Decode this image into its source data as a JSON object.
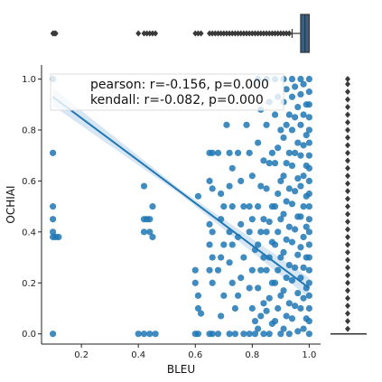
{
  "chart_data": {
    "type": "scatter",
    "title": "",
    "xlabel": "BLEU",
    "ylabel": "OCHIAI",
    "xlim": [
      0.06,
      1.04
    ],
    "ylim": [
      -0.04,
      1.055
    ],
    "xticks": [
      0.2,
      0.4,
      0.6,
      0.8,
      1.0
    ],
    "xtick_labels": [
      "0.2",
      "0.4",
      "0.6",
      "0.8",
      "1.0"
    ],
    "yticks": [
      0.0,
      0.2,
      0.4,
      0.6,
      0.8,
      1.0
    ],
    "ytick_labels": [
      "0.0",
      "0.2",
      "0.4",
      "0.6",
      "0.8",
      "1.0"
    ],
    "grid": false,
    "annotation": {
      "lines": [
        "pearson: r=-0.156, p=0.000",
        "kendall: r=-0.082, p=0.000"
      ],
      "placement": "top-center"
    },
    "colors": {
      "points": "#1f77b4",
      "regression": "#1f77b4",
      "ci_band": "#c6dbef",
      "box_fill": "#3b5f80",
      "box_edge": "#333333"
    },
    "regression": {
      "x": [
        0.1,
        1.0
      ],
      "y": [
        0.93,
        0.18
      ]
    },
    "points": [
      {
        "x": 0.1,
        "y": 1.0
      },
      {
        "x": 0.1,
        "y": 0.71
      },
      {
        "x": 0.1,
        "y": 0.5
      },
      {
        "x": 0.1,
        "y": 0.45
      },
      {
        "x": 0.1,
        "y": 0.4
      },
      {
        "x": 0.1,
        "y": 0.38
      },
      {
        "x": 0.11,
        "y": 0.38
      },
      {
        "x": 0.12,
        "y": 0.38
      },
      {
        "x": 0.1,
        "y": 0.0
      },
      {
        "x": 0.4,
        "y": 0.0
      },
      {
        "x": 0.42,
        "y": 0.0
      },
      {
        "x": 0.44,
        "y": 0.0
      },
      {
        "x": 0.46,
        "y": 0.0
      },
      {
        "x": 0.42,
        "y": 0.58
      },
      {
        "x": 0.42,
        "y": 0.45
      },
      {
        "x": 0.43,
        "y": 0.45
      },
      {
        "x": 0.44,
        "y": 0.45
      },
      {
        "x": 0.42,
        "y": 0.4
      },
      {
        "x": 0.44,
        "y": 0.4
      },
      {
        "x": 0.45,
        "y": 0.5
      },
      {
        "x": 0.45,
        "y": 0.38
      },
      {
        "x": 0.6,
        "y": 0.0
      },
      {
        "x": 0.61,
        "y": 0.0
      },
      {
        "x": 0.6,
        "y": 0.25
      },
      {
        "x": 0.6,
        "y": 0.2
      },
      {
        "x": 0.61,
        "y": 0.15
      },
      {
        "x": 0.61,
        "y": 0.1
      },
      {
        "x": 0.62,
        "y": 0.08
      },
      {
        "x": 0.61,
        "y": 0.54
      },
      {
        "x": 0.65,
        "y": 0.71
      },
      {
        "x": 0.66,
        "y": 0.71
      },
      {
        "x": 0.65,
        "y": 0.6
      },
      {
        "x": 0.66,
        "y": 0.57
      },
      {
        "x": 0.65,
        "y": 0.43
      },
      {
        "x": 0.66,
        "y": 0.4
      },
      {
        "x": 0.65,
        "y": 0.35
      },
      {
        "x": 0.66,
        "y": 0.3
      },
      {
        "x": 0.65,
        "y": 0.25
      },
      {
        "x": 0.66,
        "y": 0.2
      },
      {
        "x": 0.65,
        "y": 0.0
      },
      {
        "x": 0.66,
        "y": 0.0
      },
      {
        "x": 0.68,
        "y": 0.71
      },
      {
        "x": 0.69,
        "y": 0.55
      },
      {
        "x": 0.7,
        "y": 0.5
      },
      {
        "x": 0.69,
        "y": 0.45
      },
      {
        "x": 0.7,
        "y": 0.35
      },
      {
        "x": 0.69,
        "y": 0.3
      },
      {
        "x": 0.68,
        "y": 0.25
      },
      {
        "x": 0.7,
        "y": 0.15
      },
      {
        "x": 0.69,
        "y": 0.07
      },
      {
        "x": 0.68,
        "y": 0.0
      },
      {
        "x": 0.71,
        "y": 0.82
      },
      {
        "x": 0.72,
        "y": 0.71
      },
      {
        "x": 0.73,
        "y": 0.65
      },
      {
        "x": 0.72,
        "y": 0.58
      },
      {
        "x": 0.73,
        "y": 0.5
      },
      {
        "x": 0.72,
        "y": 0.4
      },
      {
        "x": 0.73,
        "y": 0.35
      },
      {
        "x": 0.72,
        "y": 0.28
      },
      {
        "x": 0.73,
        "y": 0.2
      },
      {
        "x": 0.74,
        "y": 0.1
      },
      {
        "x": 0.72,
        "y": 0.0
      },
      {
        "x": 0.74,
        "y": 0.0
      },
      {
        "x": 0.75,
        "y": 0.71
      },
      {
        "x": 0.76,
        "y": 0.6
      },
      {
        "x": 0.77,
        "y": 0.5
      },
      {
        "x": 0.76,
        "y": 0.43
      },
      {
        "x": 0.75,
        "y": 0.38
      },
      {
        "x": 0.77,
        "y": 0.3
      },
      {
        "x": 0.76,
        "y": 0.22
      },
      {
        "x": 0.75,
        "y": 0.15
      },
      {
        "x": 0.77,
        "y": 0.0
      },
      {
        "x": 0.78,
        "y": 0.82
      },
      {
        "x": 0.79,
        "y": 0.71
      },
      {
        "x": 0.8,
        "y": 0.62
      },
      {
        "x": 0.79,
        "y": 0.5
      },
      {
        "x": 0.8,
        "y": 0.45
      },
      {
        "x": 0.79,
        "y": 0.4
      },
      {
        "x": 0.81,
        "y": 0.33
      },
      {
        "x": 0.8,
        "y": 0.25
      },
      {
        "x": 0.79,
        "y": 0.18
      },
      {
        "x": 0.8,
        "y": 0.1
      },
      {
        "x": 0.81,
        "y": 0.05
      },
      {
        "x": 0.79,
        "y": 0.0
      },
      {
        "x": 0.81,
        "y": 0.0
      },
      {
        "x": 0.82,
        "y": 1.0
      },
      {
        "x": 0.83,
        "y": 0.88
      },
      {
        "x": 0.82,
        "y": 0.75
      },
      {
        "x": 0.84,
        "y": 0.68
      },
      {
        "x": 0.83,
        "y": 0.58
      },
      {
        "x": 0.82,
        "y": 0.5
      },
      {
        "x": 0.84,
        "y": 0.45
      },
      {
        "x": 0.83,
        "y": 0.4
      },
      {
        "x": 0.82,
        "y": 0.35
      },
      {
        "x": 0.84,
        "y": 0.3
      },
      {
        "x": 0.83,
        "y": 0.25
      },
      {
        "x": 0.82,
        "y": 0.18
      },
      {
        "x": 0.84,
        "y": 0.12
      },
      {
        "x": 0.83,
        "y": 0.07
      },
      {
        "x": 0.82,
        "y": 0.02
      },
      {
        "x": 0.84,
        "y": 0.0
      },
      {
        "x": 0.85,
        "y": 1.0
      },
      {
        "x": 0.86,
        "y": 0.91
      },
      {
        "x": 0.85,
        "y": 0.82
      },
      {
        "x": 0.87,
        "y": 0.71
      },
      {
        "x": 0.86,
        "y": 0.67
      },
      {
        "x": 0.85,
        "y": 0.57
      },
      {
        "x": 0.87,
        "y": 0.5
      },
      {
        "x": 0.86,
        "y": 0.44
      },
      {
        "x": 0.85,
        "y": 0.4
      },
      {
        "x": 0.87,
        "y": 0.36
      },
      {
        "x": 0.86,
        "y": 0.3
      },
      {
        "x": 0.85,
        "y": 0.25
      },
      {
        "x": 0.87,
        "y": 0.2
      },
      {
        "x": 0.86,
        "y": 0.14
      },
      {
        "x": 0.85,
        "y": 0.09
      },
      {
        "x": 0.87,
        "y": 0.04
      },
      {
        "x": 0.86,
        "y": 0.0
      },
      {
        "x": 0.88,
        "y": 1.0
      },
      {
        "x": 0.89,
        "y": 0.93
      },
      {
        "x": 0.88,
        "y": 0.86
      },
      {
        "x": 0.9,
        "y": 0.8
      },
      {
        "x": 0.89,
        "y": 0.73
      },
      {
        "x": 0.88,
        "y": 0.67
      },
      {
        "x": 0.9,
        "y": 0.6
      },
      {
        "x": 0.89,
        "y": 0.55
      },
      {
        "x": 0.88,
        "y": 0.5
      },
      {
        "x": 0.9,
        "y": 0.45
      },
      {
        "x": 0.89,
        "y": 0.4
      },
      {
        "x": 0.88,
        "y": 0.35
      },
      {
        "x": 0.9,
        "y": 0.3
      },
      {
        "x": 0.89,
        "y": 0.25
      },
      {
        "x": 0.88,
        "y": 0.2
      },
      {
        "x": 0.9,
        "y": 0.15
      },
      {
        "x": 0.89,
        "y": 0.1
      },
      {
        "x": 0.88,
        "y": 0.05
      },
      {
        "x": 0.9,
        "y": 0.0
      },
      {
        "x": 0.91,
        "y": 1.0
      },
      {
        "x": 0.92,
        "y": 0.96
      },
      {
        "x": 0.91,
        "y": 0.91
      },
      {
        "x": 0.93,
        "y": 0.86
      },
      {
        "x": 0.92,
        "y": 0.82
      },
      {
        "x": 0.91,
        "y": 0.77
      },
      {
        "x": 0.93,
        "y": 0.71
      },
      {
        "x": 0.92,
        "y": 0.67
      },
      {
        "x": 0.91,
        "y": 0.62
      },
      {
        "x": 0.93,
        "y": 0.57
      },
      {
        "x": 0.92,
        "y": 0.52
      },
      {
        "x": 0.91,
        "y": 0.47
      },
      {
        "x": 0.93,
        "y": 0.42
      },
      {
        "x": 0.92,
        "y": 0.37
      },
      {
        "x": 0.91,
        "y": 0.32
      },
      {
        "x": 0.93,
        "y": 0.27
      },
      {
        "x": 0.92,
        "y": 0.22
      },
      {
        "x": 0.91,
        "y": 0.17
      },
      {
        "x": 0.93,
        "y": 0.12
      },
      {
        "x": 0.92,
        "y": 0.07
      },
      {
        "x": 0.91,
        "y": 0.02
      },
      {
        "x": 0.93,
        "y": 0.0
      },
      {
        "x": 0.94,
        "y": 1.0
      },
      {
        "x": 0.95,
        "y": 0.97
      },
      {
        "x": 0.94,
        "y": 0.93
      },
      {
        "x": 0.96,
        "y": 0.89
      },
      {
        "x": 0.95,
        "y": 0.85
      },
      {
        "x": 0.94,
        "y": 0.8
      },
      {
        "x": 0.96,
        "y": 0.75
      },
      {
        "x": 0.95,
        "y": 0.71
      },
      {
        "x": 0.94,
        "y": 0.66
      },
      {
        "x": 0.96,
        "y": 0.61
      },
      {
        "x": 0.95,
        "y": 0.56
      },
      {
        "x": 0.94,
        "y": 0.51
      },
      {
        "x": 0.96,
        "y": 0.46
      },
      {
        "x": 0.95,
        "y": 0.41
      },
      {
        "x": 0.94,
        "y": 0.36
      },
      {
        "x": 0.96,
        "y": 0.31
      },
      {
        "x": 0.95,
        "y": 0.26
      },
      {
        "x": 0.94,
        "y": 0.21
      },
      {
        "x": 0.96,
        "y": 0.16
      },
      {
        "x": 0.95,
        "y": 0.11
      },
      {
        "x": 0.94,
        "y": 0.06
      },
      {
        "x": 0.96,
        "y": 0.01
      },
      {
        "x": 0.97,
        "y": 1.0
      },
      {
        "x": 0.98,
        "y": 0.98
      },
      {
        "x": 0.97,
        "y": 0.94
      },
      {
        "x": 0.99,
        "y": 0.9
      },
      {
        "x": 0.98,
        "y": 0.86
      },
      {
        "x": 0.97,
        "y": 0.82
      },
      {
        "x": 0.99,
        "y": 0.78
      },
      {
        "x": 0.98,
        "y": 0.74
      },
      {
        "x": 0.97,
        "y": 0.7
      },
      {
        "x": 0.99,
        "y": 0.66
      },
      {
        "x": 0.98,
        "y": 0.62
      },
      {
        "x": 0.97,
        "y": 0.58
      },
      {
        "x": 0.99,
        "y": 0.54
      },
      {
        "x": 0.98,
        "y": 0.5
      },
      {
        "x": 0.97,
        "y": 0.46
      },
      {
        "x": 0.99,
        "y": 0.42
      },
      {
        "x": 0.98,
        "y": 0.38
      },
      {
        "x": 0.97,
        "y": 0.34
      },
      {
        "x": 0.99,
        "y": 0.3
      },
      {
        "x": 0.98,
        "y": 0.26
      },
      {
        "x": 0.97,
        "y": 0.22
      },
      {
        "x": 0.99,
        "y": 0.18
      },
      {
        "x": 0.98,
        "y": 0.14
      },
      {
        "x": 0.97,
        "y": 0.1
      },
      {
        "x": 0.99,
        "y": 0.06
      },
      {
        "x": 0.98,
        "y": 0.02
      },
      {
        "x": 1.0,
        "y": 1.0
      },
      {
        "x": 1.0,
        "y": 0.95
      },
      {
        "x": 1.0,
        "y": 0.9
      },
      {
        "x": 1.0,
        "y": 0.85
      },
      {
        "x": 1.0,
        "y": 0.8
      },
      {
        "x": 1.0,
        "y": 0.75
      },
      {
        "x": 1.0,
        "y": 0.7
      },
      {
        "x": 1.0,
        "y": 0.65
      },
      {
        "x": 1.0,
        "y": 0.6
      },
      {
        "x": 1.0,
        "y": 0.55
      },
      {
        "x": 1.0,
        "y": 0.5
      },
      {
        "x": 1.0,
        "y": 0.45
      },
      {
        "x": 1.0,
        "y": 0.4
      },
      {
        "x": 1.0,
        "y": 0.35
      },
      {
        "x": 1.0,
        "y": 0.3
      },
      {
        "x": 1.0,
        "y": 0.25
      },
      {
        "x": 1.0,
        "y": 0.2
      },
      {
        "x": 1.0,
        "y": 0.15
      },
      {
        "x": 1.0,
        "y": 0.1
      },
      {
        "x": 1.0,
        "y": 0.05
      },
      {
        "x": 1.0,
        "y": 0.0
      }
    ],
    "marginal_x": {
      "type": "boxplot",
      "q1": 0.97,
      "median": 0.985,
      "q3": 1.0,
      "whisker_low": 0.94,
      "whisker_high": 1.0,
      "outliers": [
        0.1,
        0.105,
        0.11,
        0.4,
        0.42,
        0.43,
        0.44,
        0.45,
        0.46,
        0.6,
        0.61,
        0.62,
        0.65,
        0.66,
        0.67,
        0.68,
        0.69,
        0.7,
        0.71,
        0.72,
        0.73,
        0.74,
        0.75,
        0.76,
        0.77,
        0.78,
        0.79,
        0.8,
        0.81,
        0.82,
        0.83,
        0.84,
        0.85,
        0.86,
        0.87,
        0.88,
        0.89,
        0.9,
        0.91,
        0.92,
        0.93
      ]
    },
    "marginal_y": {
      "type": "boxplot",
      "q1": 0.0,
      "median": 0.0,
      "q3": 0.0,
      "whisker_low": 0.0,
      "whisker_high": 0.0,
      "outliers": [
        0.02,
        0.05,
        0.08,
        0.11,
        0.14,
        0.17,
        0.2,
        0.23,
        0.26,
        0.29,
        0.32,
        0.35,
        0.38,
        0.41,
        0.44,
        0.47,
        0.5,
        0.53,
        0.56,
        0.59,
        0.62,
        0.65,
        0.68,
        0.71,
        0.74,
        0.77,
        0.8,
        0.83,
        0.86,
        0.89,
        0.92,
        0.95,
        0.98,
        1.0
      ]
    }
  }
}
